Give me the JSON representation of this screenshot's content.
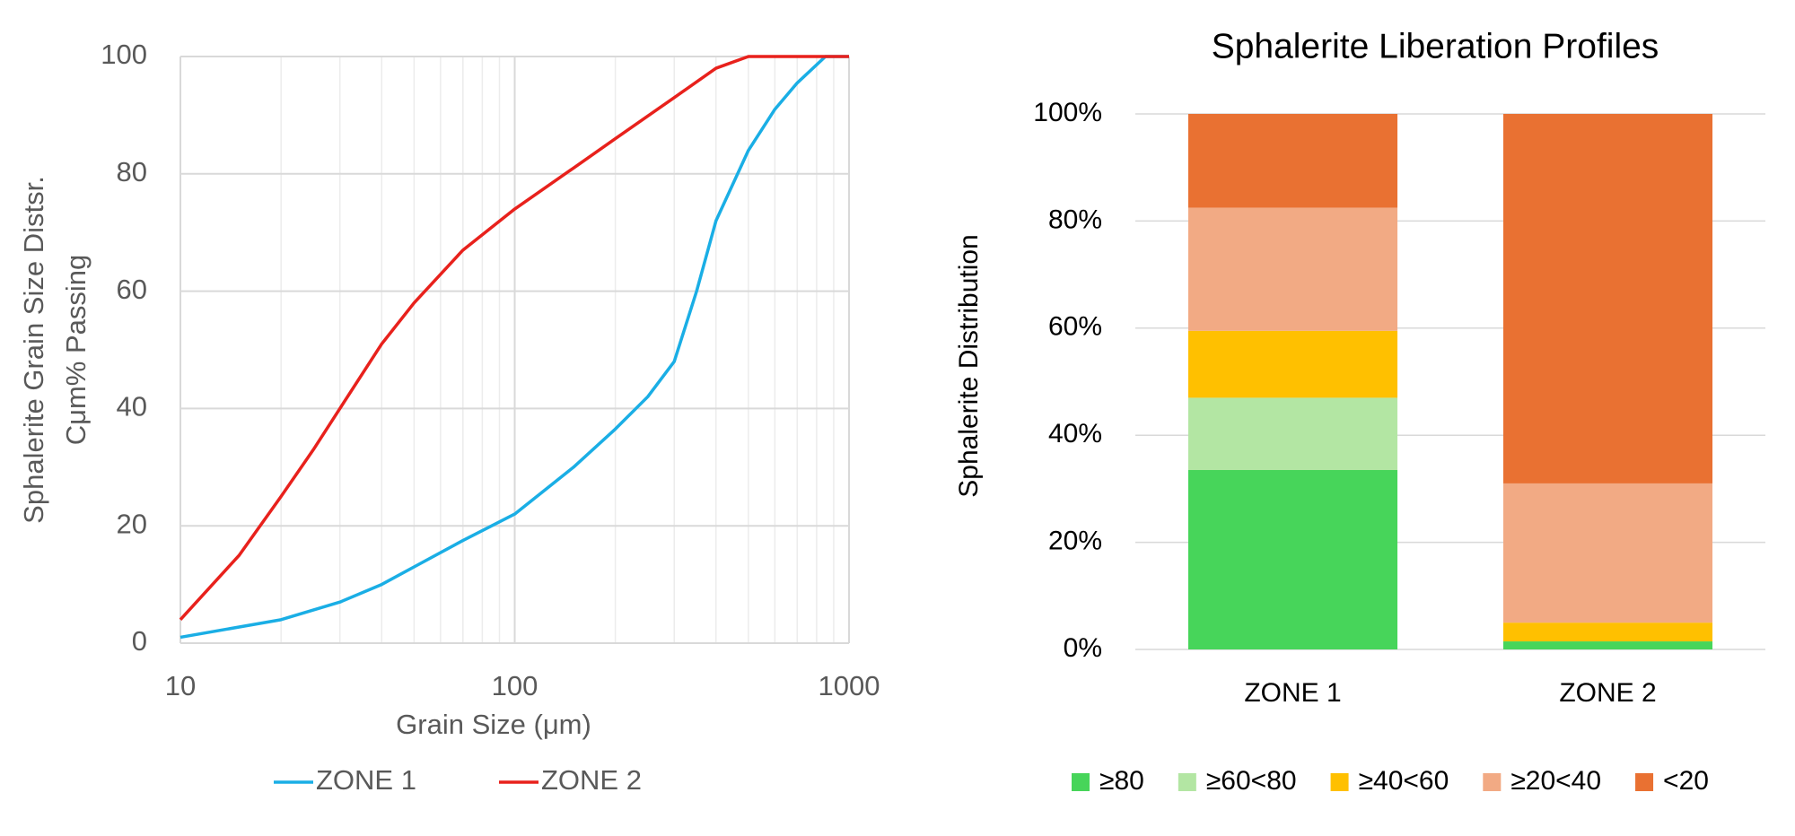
{
  "chart_data": [
    {
      "type": "line",
      "x_scale": "log",
      "grid": true,
      "minor_grid": true,
      "xlabel": "Grain Size (μm)",
      "ylabel": [
        "Sphalerite Grain Size Distsr.",
        "Cμm% Passing"
      ],
      "xlim": [
        10,
        1000
      ],
      "xticks": [
        10,
        100,
        1000
      ],
      "ylim": [
        0,
        100
      ],
      "yticks": [
        0,
        20,
        40,
        60,
        80,
        100
      ],
      "legend": "bottom",
      "series": [
        {
          "name": "ZONE 1",
          "color": "#1aaee5",
          "x": [
            10,
            20,
            30,
            40,
            50,
            70,
            100,
            150,
            200,
            250,
            300,
            350,
            400,
            500,
            600,
            700,
            850,
            1000
          ],
          "values": [
            1,
            4,
            7,
            10,
            13,
            17.5,
            22,
            30,
            36.5,
            42,
            48,
            60,
            72,
            84,
            91,
            95.5,
            100,
            100
          ]
        },
        {
          "name": "ZONE 2",
          "color": "#e8211c",
          "x": [
            10,
            15,
            20,
            25,
            30,
            40,
            50,
            70,
            100,
            150,
            200,
            300,
            400,
            500,
            700,
            1000
          ],
          "values": [
            4,
            15,
            25,
            33,
            40,
            51,
            58,
            67,
            74,
            81,
            86,
            93,
            98,
            100,
            100,
            100
          ]
        }
      ]
    },
    {
      "type": "bar",
      "stacked": true,
      "grid": true,
      "title": "Sphalerite Liberation Profiles",
      "ylabel": "Sphalerite Distribution",
      "categories": [
        "ZONE 1",
        "ZONE 2"
      ],
      "ylim": [
        0,
        100
      ],
      "yticks": [
        {
          "value": 0,
          "label": "0%"
        },
        {
          "value": 20,
          "label": "20%"
        },
        {
          "value": 40,
          "label": "40%"
        },
        {
          "value": 60,
          "label": "60%"
        },
        {
          "value": 80,
          "label": "80%"
        },
        {
          "value": 100,
          "label": "100%"
        }
      ],
      "legend": "bottom",
      "series": [
        {
          "name": "≥80",
          "color": "#47d55a",
          "values": [
            33.5,
            1.5
          ]
        },
        {
          "name": "≥60<80",
          "color": "#b3e6a3",
          "values": [
            13.5,
            0
          ]
        },
        {
          "name": "≥40<60",
          "color": "#ffc000",
          "values": [
            12.5,
            3.5
          ]
        },
        {
          "name": "≥20<40",
          "color": "#f2aa84",
          "values": [
            23,
            26
          ]
        },
        {
          "name": "<20",
          "color": "#e97132",
          "values": [
            17.5,
            69
          ]
        }
      ]
    }
  ]
}
